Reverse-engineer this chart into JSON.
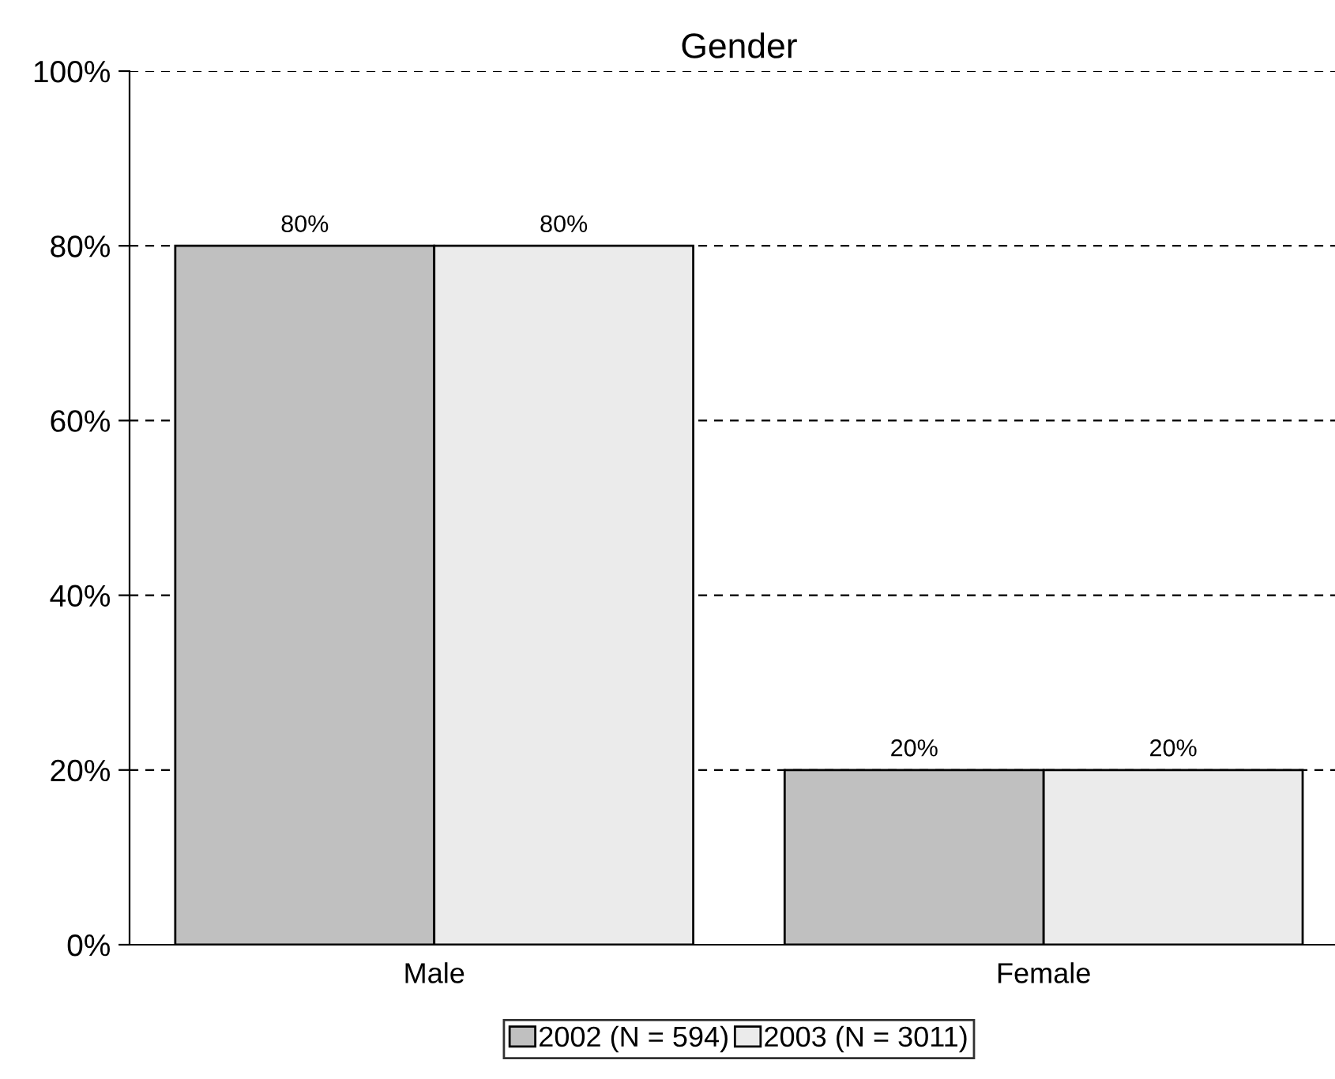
{
  "chart_data": {
    "type": "bar",
    "title": "Gender",
    "categories": [
      "Male",
      "Female"
    ],
    "series": [
      {
        "name": "2002 (N = 594)",
        "color": "#c0c0c0",
        "values": [
          80,
          20
        ]
      },
      {
        "name": "2003 (N = 3011)",
        "color": "#ebebeb",
        "values": [
          80,
          20
        ]
      }
    ],
    "ylim": [
      0,
      100
    ],
    "yticks": [
      {
        "value": 0,
        "label": "0%"
      },
      {
        "value": 20,
        "label": "20%"
      },
      {
        "value": 40,
        "label": "40%"
      },
      {
        "value": 60,
        "label": "60%"
      },
      {
        "value": 80,
        "label": "80%"
      },
      {
        "value": 100,
        "label": "100%"
      }
    ],
    "value_labels": [
      [
        "80%",
        "20%"
      ],
      [
        "80%",
        "20%"
      ]
    ],
    "grid": "y",
    "line_style": "dashed",
    "legend": "bottom"
  }
}
